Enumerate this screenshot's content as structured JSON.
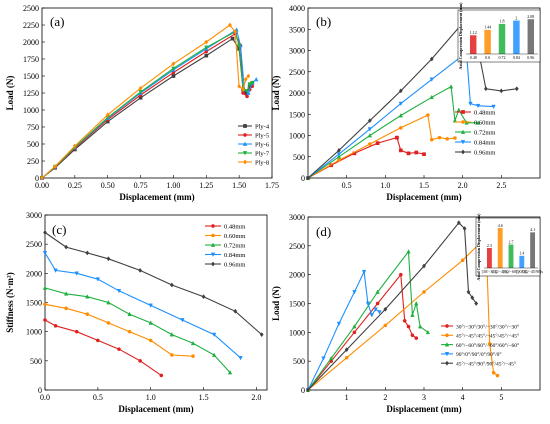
{
  "chart_data": [
    {
      "id": "a",
      "type": "line",
      "panel_label": "(a)",
      "xlabel": "Displacement (mm)",
      "ylabel": "Load (N)",
      "xlim": [
        0,
        1.75
      ],
      "ylim": [
        0,
        2500
      ],
      "xticks": [
        "0.00",
        "0.25",
        "0.50",
        "0.75",
        "1.00",
        "1.25",
        "1.50",
        "1.75"
      ],
      "yticks": [
        "0",
        "250",
        "500",
        "750",
        "1000",
        "1250",
        "1500",
        "1750",
        "2000",
        "2250",
        "2500"
      ],
      "legend_position": "bottom-right",
      "series": [
        {
          "name": "Ply-4",
          "color": "#404040",
          "marker": "square",
          "x": [
            0,
            0.1,
            0.25,
            0.5,
            0.75,
            1.0,
            1.25,
            1.45,
            1.5,
            1.53,
            1.55,
            1.58,
            1.6
          ],
          "y": [
            0,
            150,
            420,
            830,
            1180,
            1500,
            1800,
            2050,
            1900,
            1300,
            1250,
            1350,
            1400
          ]
        },
        {
          "name": "Ply-5",
          "color": "#e02020",
          "marker": "circle",
          "x": [
            0,
            0.1,
            0.25,
            0.5,
            0.75,
            1.0,
            1.25,
            1.47,
            1.51,
            1.53,
            1.56,
            1.58,
            1.6
          ],
          "y": [
            0,
            160,
            440,
            860,
            1220,
            1550,
            1860,
            2120,
            1950,
            1250,
            1200,
            1300,
            1350
          ]
        },
        {
          "name": "Ply-6",
          "color": "#1e90ff",
          "marker": "triangle",
          "x": [
            0,
            0.1,
            0.25,
            0.5,
            0.75,
            1.0,
            1.25,
            1.48,
            1.51,
            1.54,
            1.57,
            1.6,
            1.63
          ],
          "y": [
            0,
            165,
            450,
            880,
            1250,
            1590,
            1900,
            2180,
            1950,
            1300,
            1250,
            1400,
            1450
          ]
        },
        {
          "name": "Ply-7",
          "color": "#20b040",
          "marker": "triangle-down",
          "x": [
            0,
            0.1,
            0.25,
            0.5,
            0.75,
            1.0,
            1.25,
            1.47,
            1.5,
            1.53,
            1.56,
            1.58,
            1.6
          ],
          "y": [
            0,
            165,
            455,
            890,
            1265,
            1610,
            1920,
            2150,
            1950,
            1300,
            1280,
            1380,
            1400
          ]
        },
        {
          "name": "Ply-8",
          "color": "#ff8c00",
          "marker": "diamond",
          "x": [
            0,
            0.1,
            0.25,
            0.5,
            0.75,
            1.0,
            1.25,
            1.43,
            1.47,
            1.5,
            1.53,
            1.55,
            1.57
          ],
          "y": [
            0,
            170,
            470,
            930,
            1320,
            1680,
            2000,
            2250,
            2150,
            1350,
            1300,
            1450,
            1500
          ]
        }
      ]
    },
    {
      "id": "b",
      "type": "line",
      "panel_label": "(b)",
      "xlabel": "Displacement (mm)",
      "ylabel": "Load (N)",
      "xlim": [
        0,
        3
      ],
      "ylim": [
        0,
        4000
      ],
      "xticks": [
        "0.5",
        "1.0",
        "1.5",
        "2.0",
        "2.5"
      ],
      "yticks": [
        "0",
        "500",
        "1000",
        "1500",
        "2000",
        "2500",
        "3000",
        "3500",
        "4000"
      ],
      "legend_position": "bottom-right",
      "series": [
        {
          "name": "0.48mm",
          "color": "#e02020",
          "marker": "square",
          "x": [
            0,
            0.3,
            0.6,
            0.9,
            1.15,
            1.2,
            1.3,
            1.4,
            1.5
          ],
          "y": [
            0,
            300,
            580,
            820,
            950,
            650,
            580,
            600,
            560
          ]
        },
        {
          "name": "0.60mm",
          "color": "#ff8c00",
          "marker": "circle",
          "x": [
            0,
            0.4,
            0.8,
            1.2,
            1.55,
            1.6,
            1.7,
            1.8,
            1.9
          ],
          "y": [
            0,
            420,
            800,
            1180,
            1480,
            900,
            950,
            920,
            940
          ]
        },
        {
          "name": "0.72mm",
          "color": "#20b040",
          "marker": "triangle",
          "x": [
            0,
            0.4,
            0.8,
            1.2,
            1.6,
            1.85,
            1.9,
            1.95,
            2.05,
            2.2
          ],
          "y": [
            0,
            500,
            1000,
            1470,
            1900,
            2150,
            1350,
            1600,
            1300,
            1300
          ]
        },
        {
          "name": "0.84mm",
          "color": "#1e90ff",
          "marker": "triangle-down",
          "x": [
            0,
            0.4,
            0.8,
            1.2,
            1.6,
            2.05,
            2.1,
            2.2,
            2.4
          ],
          "y": [
            0,
            560,
            1150,
            1750,
            2320,
            2950,
            1750,
            1700,
            1680
          ]
        },
        {
          "name": "0.96mm",
          "color": "#404040",
          "marker": "diamond",
          "x": [
            0,
            0.4,
            0.8,
            1.2,
            1.6,
            2.05,
            2.15,
            2.3,
            2.5,
            2.7
          ],
          "y": [
            0,
            650,
            1350,
            2050,
            2800,
            3750,
            3500,
            2100,
            2050,
            2100
          ]
        }
      ],
      "inset": {
        "type": "bar",
        "ylabel": "Axial Compression Displacement (mm)",
        "categories": [
          "0.48",
          "0.6",
          "0.72",
          "0.84",
          "0.96"
        ],
        "values": [
          1.12,
          1.44,
          1.8,
          2,
          2.08
        ],
        "value_labels": [
          "1.12",
          "1.44",
          "1.8",
          "2",
          "2.08"
        ],
        "colors": [
          "#e02020",
          "#ff8c00",
          "#20b040",
          "#1e90ff",
          "#606060"
        ]
      }
    },
    {
      "id": "c",
      "type": "line",
      "panel_label": "(c)",
      "xlabel": "Displacement (mm)",
      "ylabel": "Stiffness (N·m²)",
      "xlim": [
        0,
        2.1
      ],
      "ylim": [
        0,
        3000
      ],
      "xticks": [
        "0.0",
        "0.5",
        "1.0",
        "1.5",
        "2.0"
      ],
      "yticks": [
        "0",
        "500",
        "1000",
        "1500",
        "2000",
        "2500",
        "3000"
      ],
      "legend_position": "top-right",
      "series": [
        {
          "name": "0.48mm",
          "color": "#e02020",
          "marker": "circle",
          "x": [
            0,
            0.1,
            0.3,
            0.5,
            0.7,
            0.9,
            1.1
          ],
          "y": [
            1200,
            1100,
            1000,
            850,
            700,
            500,
            250
          ]
        },
        {
          "name": "0.60mm",
          "color": "#ff8c00",
          "marker": "circle",
          "x": [
            0,
            0.2,
            0.4,
            0.6,
            0.8,
            1.0,
            1.2,
            1.4
          ],
          "y": [
            1470,
            1400,
            1300,
            1150,
            1000,
            850,
            600,
            580
          ]
        },
        {
          "name": "0.72mm",
          "color": "#20b040",
          "marker": "triangle",
          "x": [
            0,
            0.2,
            0.4,
            0.6,
            0.8,
            1.0,
            1.2,
            1.4,
            1.6,
            1.75
          ],
          "y": [
            1750,
            1650,
            1600,
            1500,
            1300,
            1150,
            950,
            800,
            600,
            300
          ]
        },
        {
          "name": "0.84mm",
          "color": "#1e90ff",
          "marker": "triangle-down",
          "x": [
            0,
            0.1,
            0.3,
            0.5,
            0.7,
            1.0,
            1.3,
            1.6,
            1.85
          ],
          "y": [
            2350,
            2050,
            2000,
            1900,
            1700,
            1450,
            1200,
            950,
            550
          ]
        },
        {
          "name": "0.96mm",
          "color": "#404040",
          "marker": "diamond",
          "x": [
            0,
            0.2,
            0.4,
            0.6,
            0.9,
            1.2,
            1.5,
            1.8,
            2.05
          ],
          "y": [
            2700,
            2450,
            2350,
            2250,
            2050,
            1800,
            1600,
            1350,
            950
          ]
        }
      ]
    },
    {
      "id": "d",
      "type": "line",
      "panel_label": "(d)",
      "xlabel": "Displacement (mm)",
      "ylabel": "Load (N)",
      "xlim": [
        0,
        6
      ],
      "ylim": [
        0,
        3000
      ],
      "xticks": [
        "1",
        "2",
        "3",
        "4",
        "5"
      ],
      "yticks": [
        "0",
        "500",
        "1000",
        "1500",
        "2000",
        "2500",
        "3000"
      ],
      "legend_position": "bottom-right",
      "series": [
        {
          "name": "30°/−30°/30°/−30°/30°/−30°",
          "color": "#e02020",
          "marker": "circle",
          "x": [
            0,
            0.6,
            1.2,
            1.8,
            2.4,
            2.5,
            2.6,
            2.7,
            2.8
          ],
          "y": [
            0,
            500,
            1000,
            1500,
            2000,
            1200,
            1100,
            950,
            900
          ]
        },
        {
          "name": "45°/−45°/45°/−45°/45°/−45°",
          "color": "#ff8c00",
          "marker": "circle",
          "x": [
            0,
            1,
            2,
            3,
            4,
            4.6,
            4.7,
            4.8,
            4.9
          ],
          "y": [
            0,
            560,
            1120,
            1700,
            2250,
            2650,
            800,
            300,
            250
          ]
        },
        {
          "name": "60°/−60°/60°/−60°/60°/−60°",
          "color": "#20b040",
          "marker": "triangle",
          "x": [
            0,
            0.6,
            1.2,
            1.8,
            2.6,
            2.7,
            2.8,
            2.9,
            3.1
          ],
          "y": [
            0,
            550,
            1100,
            1700,
            2400,
            1300,
            1500,
            1100,
            1000
          ]
        },
        {
          "name": "90°/0°/90°/0°/90°/0°",
          "color": "#1e90ff",
          "marker": "triangle-down",
          "x": [
            0,
            0.4,
            0.8,
            1.2,
            1.45,
            1.55,
            1.65,
            1.75,
            1.85
          ],
          "y": [
            0,
            550,
            1150,
            1700,
            2050,
            1500,
            1300,
            1400,
            1350
          ]
        },
        {
          "name": "45°/−45°/90°/90°/45°/−45°",
          "color": "#404040",
          "marker": "diamond",
          "x": [
            0,
            1,
            2,
            3,
            3.9,
            4.05,
            4.15,
            4.25,
            4.35
          ],
          "y": [
            0,
            700,
            1400,
            2150,
            2900,
            2800,
            1700,
            1600,
            1500
          ]
        }
      ],
      "inset": {
        "type": "bar",
        "ylabel": "Axial Compression Displacement (mm)",
        "categories": [
          "[30/−30]₃",
          "[45/−45]₃",
          "[60/−60]₃",
          "[90/0]₃",
          "[45/−45/90]s"
        ],
        "values": [
          2.3,
          4.6,
          2.7,
          1.4,
          4.1
        ],
        "value_labels": [
          "2.3",
          "4.6",
          "2.7",
          "1.4",
          "4.1"
        ],
        "colors": [
          "#e02020",
          "#ff8c00",
          "#20b040",
          "#1e90ff",
          "#606060"
        ]
      }
    }
  ]
}
